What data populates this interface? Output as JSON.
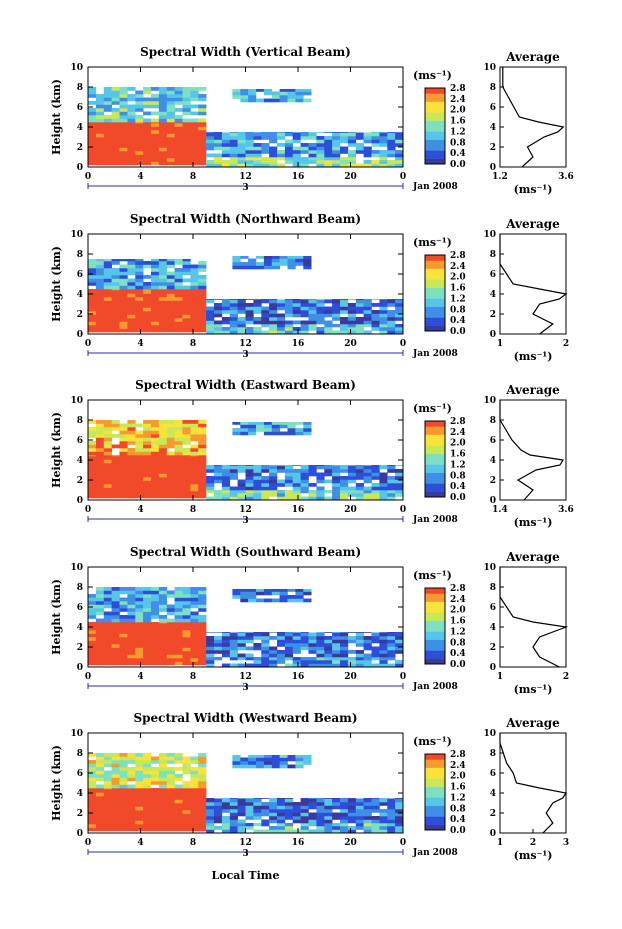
{
  "colorbar_ticks": [
    "0.0",
    "0.4",
    "0.8",
    "1.2",
    "1.6",
    "2.0",
    "2.4",
    "2.8"
  ],
  "colorbar_unit": "(ms⁻¹)",
  "avg_unit": "(ms⁻¹)",
  "xticks": [
    "0",
    "4",
    "8",
    "12",
    "16",
    "20",
    "0"
  ],
  "yticks": [
    "0",
    "2",
    "4",
    "6",
    "8",
    "10"
  ],
  "date_marker": "3",
  "date_label": "Jan 2008",
  "xlabel": "Local Time",
  "ylabel": "Height (km)",
  "avg_title": "Average",
  "colors": {
    "scale": [
      "#3a3a9a",
      "#2d4fd8",
      "#3f8fe6",
      "#56c6e8",
      "#7de0c0",
      "#c8e858",
      "#f7e33a",
      "#f79a2e",
      "#f04a2a"
    ],
    "axis": "#000000"
  },
  "chart_data": [
    {
      "type": "heatmap",
      "title": "Spectral Width (Vertical Beam)",
      "xlabel": "Local Time",
      "ylabel": "Height (km)",
      "xlim": [
        0,
        24
      ],
      "ylim": [
        0,
        10
      ],
      "colorbar": {
        "min": 0.0,
        "max": 2.8,
        "unit": "ms⁻¹"
      },
      "regions": [
        {
          "t": [
            0,
            9
          ],
          "h": [
            0.2,
            4.5
          ],
          "v": 2.8
        },
        {
          "t": [
            0,
            9
          ],
          "h": [
            4.5,
            8.0
          ],
          "v": 1.2
        },
        {
          "t": [
            9,
            24
          ],
          "h": [
            0.0,
            1.0
          ],
          "v": 1.5
        },
        {
          "t": [
            9,
            24
          ],
          "h": [
            1.0,
            3.5
          ],
          "v": 0.8
        },
        {
          "t": [
            11,
            17
          ],
          "h": [
            6.5,
            7.8
          ],
          "v": 0.9
        }
      ],
      "average": {
        "xlim": [
          1.2,
          3.6
        ],
        "xticks": [
          "1.2",
          "3.6"
        ],
        "h": [
          0,
          1,
          2,
          3,
          3.5,
          4,
          4.5,
          5,
          6,
          7,
          8,
          9,
          10
        ],
        "v": [
          2.0,
          2.4,
          2.2,
          2.8,
          3.3,
          3.5,
          2.6,
          1.9,
          1.7,
          1.5,
          1.3,
          1.3,
          1.3
        ]
      }
    },
    {
      "type": "heatmap",
      "title": "Spectral Width (Northward Beam)",
      "xlabel": "Local Time",
      "ylabel": "Height (km)",
      "xlim": [
        0,
        24
      ],
      "ylim": [
        0,
        10
      ],
      "colorbar": {
        "min": 0.0,
        "max": 2.8,
        "unit": "ms⁻¹"
      },
      "regions": [
        {
          "t": [
            0,
            9
          ],
          "h": [
            0.2,
            4.5
          ],
          "v": 2.8
        },
        {
          "t": [
            0,
            9
          ],
          "h": [
            4.5,
            7.5
          ],
          "v": 0.9
        },
        {
          "t": [
            9,
            24
          ],
          "h": [
            0.0,
            1.0
          ],
          "v": 1.0
        },
        {
          "t": [
            9,
            24
          ],
          "h": [
            1.0,
            3.5
          ],
          "v": 0.5
        },
        {
          "t": [
            11,
            17
          ],
          "h": [
            6.5,
            7.8
          ],
          "v": 0.6
        }
      ],
      "average": {
        "xlim": [
          1,
          2
        ],
        "xticks": [
          "1",
          "2"
        ],
        "h": [
          0,
          1,
          2,
          3,
          3.5,
          4,
          4.5,
          5,
          6,
          7,
          8,
          9,
          10
        ],
        "v": [
          1.6,
          1.8,
          1.5,
          1.6,
          1.9,
          2.0,
          1.6,
          1.2,
          1.1,
          1.0,
          1.0,
          1.0,
          1.0
        ]
      }
    },
    {
      "type": "heatmap",
      "title": "Spectral Width (Eastward Beam)",
      "xlabel": "Local Time",
      "ylabel": "Height (km)",
      "xlim": [
        0,
        24
      ],
      "ylim": [
        0,
        10
      ],
      "colorbar": {
        "min": 0.0,
        "max": 2.8,
        "unit": "ms⁻¹"
      },
      "regions": [
        {
          "t": [
            0,
            9
          ],
          "h": [
            0.2,
            4.5
          ],
          "v": 2.8
        },
        {
          "t": [
            0,
            9
          ],
          "h": [
            4.5,
            8.0
          ],
          "v": 2.2
        },
        {
          "t": [
            9,
            24
          ],
          "h": [
            0.0,
            1.0
          ],
          "v": 1.3
        },
        {
          "t": [
            9,
            24
          ],
          "h": [
            1.0,
            3.5
          ],
          "v": 0.6
        },
        {
          "t": [
            11,
            17
          ],
          "h": [
            6.5,
            7.8
          ],
          "v": 0.8
        }
      ],
      "average": {
        "xlim": [
          1.4,
          3.6
        ],
        "xticks": [
          "1.4",
          "3.6"
        ],
        "h": [
          0,
          1,
          2,
          3,
          3.5,
          4,
          4.5,
          5,
          6,
          7,
          8,
          9,
          10
        ],
        "v": [
          2.2,
          2.5,
          2.0,
          2.6,
          3.4,
          3.5,
          2.4,
          2.1,
          1.8,
          1.6,
          1.4,
          1.4,
          1.4
        ]
      }
    },
    {
      "type": "heatmap",
      "title": "Spectral Width (Southward Beam)",
      "xlabel": "Local Time",
      "ylabel": "Height (km)",
      "xlim": [
        0,
        24
      ],
      "ylim": [
        0,
        10
      ],
      "colorbar": {
        "min": 0.0,
        "max": 2.8,
        "unit": "ms⁻¹"
      },
      "regions": [
        {
          "t": [
            0,
            9
          ],
          "h": [
            0.2,
            4.5
          ],
          "v": 2.8
        },
        {
          "t": [
            0,
            9
          ],
          "h": [
            4.5,
            8.0
          ],
          "v": 0.9
        },
        {
          "t": [
            9,
            24
          ],
          "h": [
            0.0,
            1.0
          ],
          "v": 0.8
        },
        {
          "t": [
            9,
            24
          ],
          "h": [
            1.0,
            3.5
          ],
          "v": 0.5
        },
        {
          "t": [
            11,
            17
          ],
          "h": [
            6.5,
            7.8
          ],
          "v": 0.6
        }
      ],
      "average": {
        "xlim": [
          1,
          2
        ],
        "xticks": [
          "1",
          "2"
        ],
        "h": [
          0,
          1,
          2,
          3,
          3.5,
          4,
          4.5,
          5,
          6,
          7,
          8,
          9,
          10
        ],
        "v": [
          1.9,
          1.6,
          1.5,
          1.6,
          1.8,
          2.0,
          1.5,
          1.2,
          1.1,
          1.0,
          1.0,
          1.0,
          1.0
        ]
      }
    },
    {
      "type": "heatmap",
      "title": "Spectral Width (Westward Beam)",
      "xlabel": "Local Time",
      "ylabel": "Height (km)",
      "xlim": [
        0,
        24
      ],
      "ylim": [
        0,
        10
      ],
      "colorbar": {
        "min": 0.0,
        "max": 2.8,
        "unit": "ms⁻¹"
      },
      "regions": [
        {
          "t": [
            0,
            9
          ],
          "h": [
            0.2,
            4.5
          ],
          "v": 2.8
        },
        {
          "t": [
            0,
            9
          ],
          "h": [
            4.5,
            8.0
          ],
          "v": 1.8
        },
        {
          "t": [
            9,
            24
          ],
          "h": [
            0.0,
            1.0
          ],
          "v": 1.0
        },
        {
          "t": [
            9,
            24
          ],
          "h": [
            1.0,
            3.5
          ],
          "v": 0.5
        },
        {
          "t": [
            11,
            17
          ],
          "h": [
            6.5,
            7.8
          ],
          "v": 0.7
        }
      ],
      "average": {
        "xlim": [
          1,
          3
        ],
        "xticks": [
          "1",
          "2",
          "3"
        ],
        "h": [
          0,
          1,
          2,
          3,
          3.5,
          4,
          4.5,
          5,
          6,
          7,
          8,
          9,
          10
        ],
        "v": [
          2.3,
          2.6,
          2.4,
          2.6,
          2.9,
          3.0,
          2.2,
          1.5,
          1.4,
          1.2,
          1.1,
          1.0,
          1.0
        ]
      }
    }
  ]
}
